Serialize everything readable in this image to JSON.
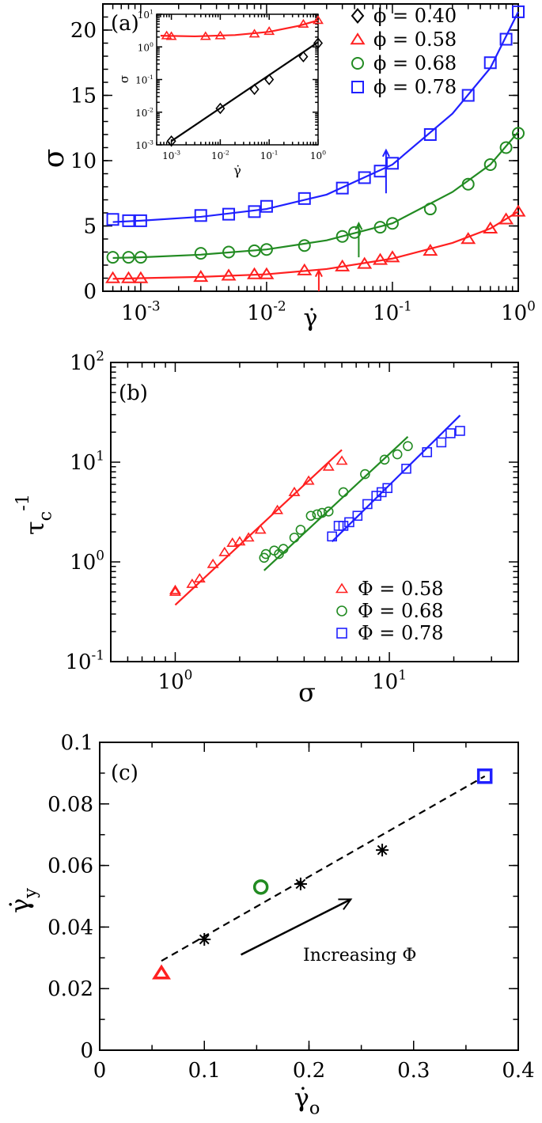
{
  "figure": {
    "panels": [
      "(a)",
      "(b)",
      "(c)"
    ]
  },
  "chart_data": [
    {
      "id": "a",
      "type": "line",
      "panel_label": "(a)",
      "xlabel": "γ̇",
      "ylabel": "σ",
      "xscale": "log",
      "xlim": [
        0.0005,
        1
      ],
      "ylim": [
        0,
        22
      ],
      "xticks": [
        {
          "v": 0.001,
          "b": "10",
          "e": "-3"
        },
        {
          "v": 0.01,
          "b": "10",
          "e": "-2"
        },
        {
          "v": 0.1,
          "b": "10",
          "e": "-1"
        },
        {
          "v": 1,
          "b": "10",
          "e": "0"
        }
      ],
      "yticks": [
        {
          "v": 0,
          "t": "0"
        },
        {
          "v": 5,
          "t": "5"
        },
        {
          "v": 10,
          "t": "10"
        },
        {
          "v": 15,
          "t": "15"
        },
        {
          "v": 20,
          "t": "20"
        }
      ],
      "legend_position": "top-right",
      "series": [
        {
          "name": "ϕ = 0.40",
          "color": "#000000",
          "marker": "diamond",
          "x": [],
          "y": [],
          "fit": []
        },
        {
          "name": "ϕ = 0.58",
          "color": "#ff2020",
          "marker": "triangle",
          "x": [
            0.0006,
            0.0008,
            0.001,
            0.003,
            0.005,
            0.008,
            0.01,
            0.02,
            0.04,
            0.06,
            0.08,
            0.1,
            0.2,
            0.4,
            0.6,
            0.8,
            1.0
          ],
          "y": [
            1.0,
            1.0,
            1.0,
            1.1,
            1.2,
            1.3,
            1.3,
            1.6,
            1.9,
            2.1,
            2.4,
            2.6,
            3.1,
            4.0,
            4.8,
            5.5,
            6.1
          ],
          "fit": [
            [
              0.0006,
              0.95
            ],
            [
              0.001,
              1.0
            ],
            [
              0.003,
              1.1
            ],
            [
              0.01,
              1.3
            ],
            [
              0.03,
              1.7
            ],
            [
              0.1,
              2.5
            ],
            [
              0.3,
              3.7
            ],
            [
              0.6,
              4.8
            ],
            [
              1.0,
              6.1
            ]
          ]
        },
        {
          "name": "ϕ = 0.68",
          "color": "#228b22",
          "marker": "circle",
          "x": [
            0.0006,
            0.0008,
            0.001,
            0.003,
            0.005,
            0.008,
            0.01,
            0.02,
            0.04,
            0.05,
            0.08,
            0.1,
            0.2,
            0.4,
            0.6,
            0.8,
            1.0
          ],
          "y": [
            2.6,
            2.6,
            2.6,
            2.9,
            3.0,
            3.1,
            3.2,
            3.5,
            4.2,
            4.5,
            4.9,
            5.2,
            6.3,
            8.2,
            9.7,
            11.0,
            12.1
          ],
          "fit": [
            [
              0.0006,
              2.55
            ],
            [
              0.001,
              2.6
            ],
            [
              0.003,
              2.8
            ],
            [
              0.01,
              3.2
            ],
            [
              0.03,
              3.9
            ],
            [
              0.1,
              5.2
            ],
            [
              0.3,
              7.6
            ],
            [
              0.6,
              9.7
            ],
            [
              1.0,
              12.2
            ]
          ]
        },
        {
          "name": "ϕ = 0.78",
          "color": "#2020ff",
          "marker": "square",
          "x": [
            0.0006,
            0.0008,
            0.001,
            0.003,
            0.005,
            0.008,
            0.01,
            0.02,
            0.04,
            0.06,
            0.08,
            0.1,
            0.2,
            0.4,
            0.6,
            0.8,
            1.0
          ],
          "y": [
            5.5,
            5.4,
            5.4,
            5.8,
            5.9,
            6.1,
            6.5,
            7.1,
            7.9,
            8.7,
            9.2,
            9.8,
            12.0,
            15.0,
            17.5,
            19.3,
            21.4
          ],
          "fit": [
            [
              0.0006,
              5.3
            ],
            [
              0.001,
              5.4
            ],
            [
              0.003,
              5.7
            ],
            [
              0.01,
              6.3
            ],
            [
              0.03,
              7.4
            ],
            [
              0.1,
              9.7
            ],
            [
              0.3,
              13.6
            ],
            [
              0.6,
              17.1
            ],
            [
              1.0,
              21.4
            ]
          ]
        }
      ],
      "arrows": [
        {
          "color": "#ff2020",
          "x": 0.026,
          "y_from": 0,
          "y_to": 1.6
        },
        {
          "color": "#228b22",
          "x": 0.054,
          "y_from": 2.6,
          "y_to": 5.2
        },
        {
          "color": "#2020ff",
          "x": 0.089,
          "y_from": 7.5,
          "y_to": 10.8
        }
      ],
      "inset": {
        "xlabel": "γ̇",
        "ylabel": "σ",
        "xscale": "log",
        "yscale": "log",
        "xlim": [
          0.0005,
          1
        ],
        "ylim": [
          0.001,
          10
        ],
        "xticks": [
          {
            "v": 0.001,
            "b": "10",
            "e": "-3"
          },
          {
            "v": 0.01,
            "b": "10",
            "e": "-2"
          },
          {
            "v": 0.1,
            "b": "10",
            "e": "-1"
          },
          {
            "v": 1,
            "b": "10",
            "e": "0"
          }
        ],
        "yticks": [
          {
            "v": 0.001,
            "b": "10",
            "e": "-3"
          },
          {
            "v": 0.01,
            "b": "10",
            "e": "-2"
          },
          {
            "v": 0.1,
            "b": "10",
            "e": "-1"
          },
          {
            "v": 1,
            "b": "10",
            "e": "0"
          },
          {
            "v": 10,
            "b": "10",
            "e": "1"
          }
        ],
        "series": [
          {
            "color": "#ff2020",
            "marker": "triangle",
            "x": [
              0.0008,
              0.001,
              0.005,
              0.01,
              0.05,
              0.1,
              0.5,
              1.0
            ],
            "y": [
              2.2,
              2.1,
              2.1,
              2.2,
              2.5,
              3.0,
              5.0,
              6.5
            ],
            "fit": [
              [
                0.0006,
                2.2
              ],
              [
                0.003,
                2.1
              ],
              [
                0.02,
                2.3
              ],
              [
                0.1,
                2.9
              ],
              [
                0.4,
                4.4
              ],
              [
                1.0,
                6.5
              ]
            ]
          },
          {
            "color": "#000000",
            "marker": "diamond",
            "x": [
              0.001,
              0.01,
              0.05,
              0.1,
              0.5,
              1.0
            ],
            "y": [
              0.0013,
              0.013,
              0.05,
              0.1,
              0.5,
              1.3
            ],
            "fit": [
              [
                0.001,
                0.0013
              ],
              [
                1.0,
                1.4
              ]
            ]
          }
        ]
      }
    },
    {
      "id": "b",
      "type": "scatter",
      "panel_label": "(b)",
      "xlabel": "σ",
      "ylabel_base": "τ",
      "ylabel_sub": "c",
      "ylabel_sup": "-1",
      "xscale": "log",
      "yscale": "log",
      "xlim": [
        0.5,
        40
      ],
      "ylim": [
        0.1,
        100
      ],
      "xticks": [
        {
          "v": 1,
          "b": "10",
          "e": "0"
        },
        {
          "v": 10,
          "b": "10",
          "e": "1"
        }
      ],
      "yticks": [
        {
          "v": 0.1,
          "b": "10",
          "e": "-1"
        },
        {
          "v": 1,
          "b": "10",
          "e": "0"
        },
        {
          "v": 10,
          "b": "10",
          "e": "1"
        },
        {
          "v": 100,
          "b": "10",
          "e": "2"
        }
      ],
      "legend_position": "lower-right",
      "series": [
        {
          "name": "Φ = 0.58",
          "color": "#ff2020",
          "marker": "triangle",
          "x": [
            1.0,
            1.0,
            1.2,
            1.3,
            1.5,
            1.7,
            1.85,
            2.0,
            2.2,
            2.5,
            3.0,
            3.6,
            4.2,
            5.2,
            6.0
          ],
          "y": [
            0.52,
            0.5,
            0.6,
            0.68,
            0.95,
            1.25,
            1.55,
            1.6,
            1.75,
            2.1,
            3.3,
            5.0,
            6.5,
            9.0,
            10.3
          ],
          "fit": [
            [
              1.0,
              0.37
            ],
            [
              6.0,
              13.3
            ]
          ]
        },
        {
          "name": "Φ = 0.68",
          "color": "#228b22",
          "marker": "circle",
          "x": [
            2.6,
            2.65,
            2.9,
            3.05,
            3.2,
            3.6,
            3.85,
            4.3,
            4.6,
            4.85,
            5.2,
            6.1,
            7.7,
            9.5,
            10.9,
            12.2
          ],
          "y": [
            1.1,
            1.2,
            1.3,
            1.2,
            1.35,
            1.75,
            2.1,
            2.9,
            3.0,
            3.1,
            3.2,
            5.0,
            7.6,
            10.6,
            12.0,
            14.5
          ],
          "fit": [
            [
              2.6,
              0.82
            ],
            [
              12.2,
              18.0
            ]
          ]
        },
        {
          "name": "Φ = 0.78",
          "color": "#2020ff",
          "marker": "square",
          "x": [
            5.4,
            5.8,
            6.1,
            6.5,
            7.1,
            7.9,
            8.7,
            9.2,
            9.8,
            12.0,
            15.0,
            17.5,
            19.3,
            21.4
          ],
          "y": [
            1.8,
            2.3,
            2.3,
            2.5,
            2.9,
            3.8,
            4.6,
            5.0,
            5.5,
            8.6,
            12.6,
            15.8,
            19.5,
            20.6
          ],
          "fit": [
            [
              5.4,
              1.6
            ],
            [
              21.4,
              29.5
            ]
          ]
        }
      ]
    },
    {
      "id": "c",
      "type": "scatter",
      "panel_label": "(c)",
      "xlabel_base": "γ̇",
      "xlabel_sub": "o",
      "ylabel_base": "γ̇",
      "ylabel_sub": "y",
      "xlim": [
        0,
        0.4
      ],
      "ylim": [
        0,
        0.1
      ],
      "xticks": [
        {
          "v": 0,
          "t": "0"
        },
        {
          "v": 0.1,
          "t": "0.1"
        },
        {
          "v": 0.2,
          "t": "0.2"
        },
        {
          "v": 0.3,
          "t": "0.3"
        },
        {
          "v": 0.4,
          "t": "0.4"
        }
      ],
      "yticks": [
        {
          "v": 0,
          "t": "0"
        },
        {
          "v": 0.02,
          "t": "0.02"
        },
        {
          "v": 0.04,
          "t": "0.04"
        },
        {
          "v": 0.06,
          "t": "0.06"
        },
        {
          "v": 0.08,
          "t": "0.08"
        },
        {
          "v": 0.1,
          "t": "0.1"
        }
      ],
      "points": [
        {
          "x": 0.059,
          "y": 0.025,
          "marker": "triangle",
          "color": "#ff2020"
        },
        {
          "x": 0.154,
          "y": 0.053,
          "marker": "circle",
          "color": "#228b22"
        },
        {
          "x": 0.368,
          "y": 0.089,
          "marker": "square",
          "color": "#2020ff"
        },
        {
          "x": 0.1,
          "y": 0.036,
          "marker": "star",
          "color": "#000000"
        },
        {
          "x": 0.192,
          "y": 0.054,
          "marker": "star",
          "color": "#000000"
        },
        {
          "x": 0.27,
          "y": 0.065,
          "marker": "star",
          "color": "#000000"
        }
      ],
      "dashed_line": [
        [
          0.059,
          0.029
        ],
        [
          0.368,
          0.089
        ]
      ],
      "annotation": {
        "text": "Increasing Φ",
        "arrow_from": [
          0.135,
          0.031
        ],
        "arrow_to": [
          0.24,
          0.049
        ]
      }
    }
  ]
}
